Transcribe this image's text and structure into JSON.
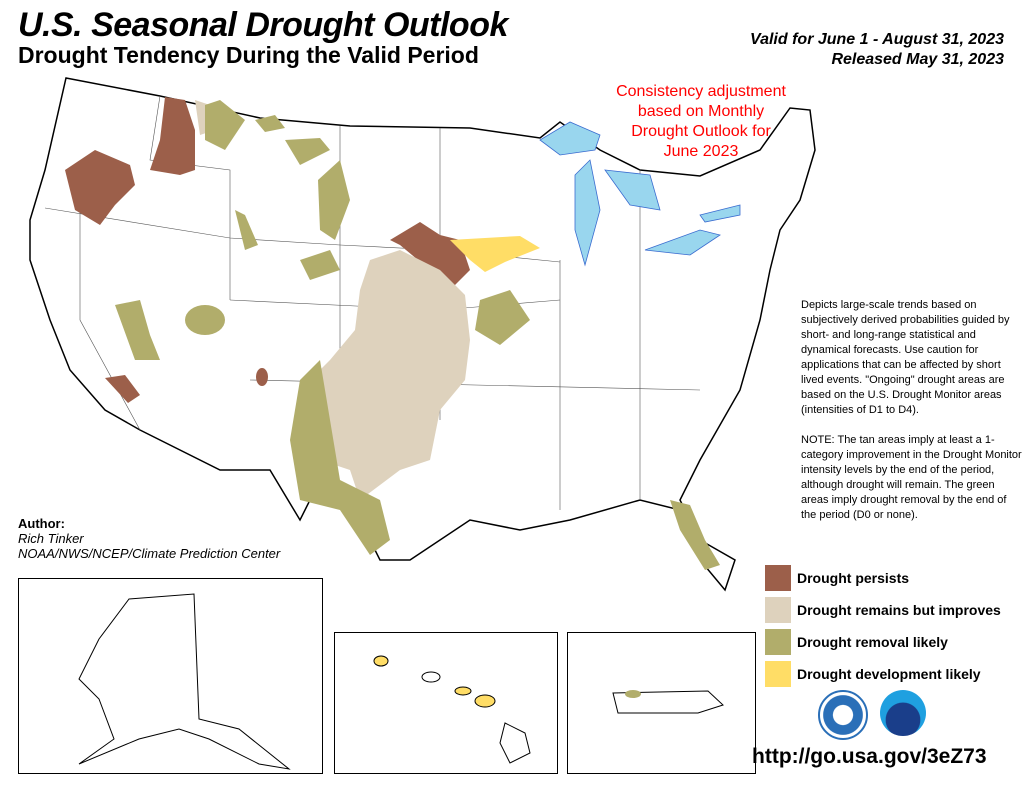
{
  "header": {
    "title": "U.S. Seasonal Drought Outlook",
    "subtitle": "Drought Tendency During the Valid Period",
    "valid": "Valid for June 1 - August 31, 2023",
    "released": "Released May 31, 2023"
  },
  "annotation": {
    "lines": [
      "Consistency adjustment",
      "based on Monthly",
      "Drought Outlook for",
      "June 2023"
    ]
  },
  "description": {
    "p1": "Depicts large-scale trends based on subjectively derived probabilities guided by short- and long-range statistical and dynamical forecasts. Use caution for applications that can be affected by short lived events. \"Ongoing\" drought areas are based on the U.S. Drought Monitor areas (intensities of D1 to D4).",
    "p2": "NOTE: The tan areas imply at least a 1-category improvement in the Drought Monitor intensity levels by the end of the period, although drought will remain. The green areas imply drought removal by the end of the period (D0 or none)."
  },
  "legend": [
    {
      "label": "Drought persists",
      "color": "#9c5f4a"
    },
    {
      "label": "Drought remains but improves",
      "color": "#ded2bd"
    },
    {
      "label": "Drought removal likely",
      "color": "#b1ad6b"
    },
    {
      "label": "Drought development likely",
      "color": "#ffdd66"
    }
  ],
  "author": {
    "heading": "Author:",
    "name": "Rich Tinker",
    "org": "NOAA/NWS/NCEP/Climate Prediction Center"
  },
  "logos": {
    "doc": "U.S. Department of Commerce seal",
    "noaa": "NOAA"
  },
  "url": "http://go.usa.gov/3eZ73"
}
